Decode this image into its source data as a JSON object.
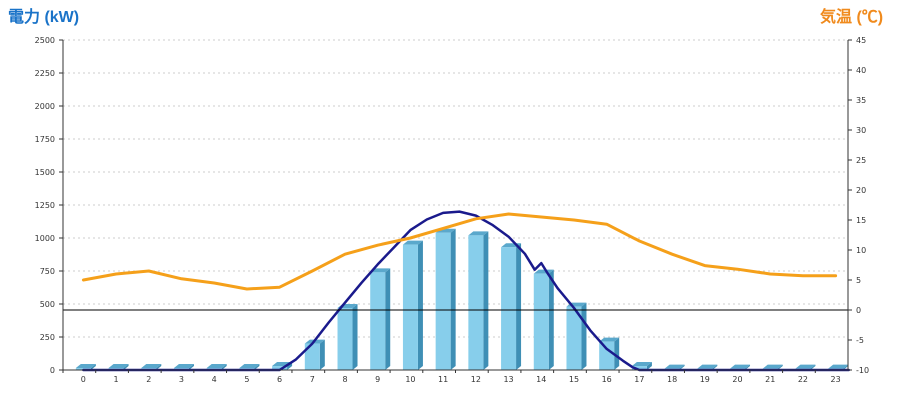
{
  "chart_data": {
    "type": "bar",
    "left_axis_title": "電力 (kW)",
    "right_axis_title": "気温 (℃)",
    "categories": [
      "0",
      "1",
      "2",
      "3",
      "4",
      "5",
      "6",
      "7",
      "8",
      "9",
      "10",
      "11",
      "12",
      "13",
      "14",
      "15",
      "16",
      "17",
      "18",
      "19",
      "20",
      "21",
      "22",
      "23"
    ],
    "y_left": {
      "min": 0,
      "max": 2500,
      "ticks": [
        "0",
        "250",
        "500",
        "750",
        "1000",
        "1250",
        "1500",
        "1750",
        "2000",
        "2250",
        "2500"
      ]
    },
    "y_right": {
      "min": -10,
      "max": 45,
      "ticks": [
        "-10",
        "-5",
        "0",
        "5",
        "10",
        "15",
        "20",
        "25",
        "30",
        "35",
        "40",
        "45"
      ]
    },
    "series": [
      {
        "kind": "bar",
        "axis": "left",
        "color": "#87ceeb",
        "values": [
          15,
          15,
          15,
          15,
          15,
          15,
          30,
          200,
          470,
          740,
          950,
          1040,
          1020,
          930,
          730,
          480,
          215,
          30,
          10,
          10,
          10,
          10,
          10,
          10
        ]
      },
      {
        "kind": "line",
        "axis": "left",
        "color": "#1a1a8c",
        "x": [
          0,
          6,
          6.5,
          7,
          7.5,
          8,
          8.5,
          9,
          9.5,
          10,
          10.5,
          11,
          11.5,
          12,
          12.5,
          13,
          13.5,
          13.8,
          14,
          14.2,
          14.5,
          15,
          15.5,
          16,
          16.5,
          16.8,
          17,
          23.4
        ],
        "values": [
          0,
          0,
          80,
          200,
          360,
          510,
          660,
          800,
          930,
          1060,
          1140,
          1190,
          1200,
          1170,
          1100,
          1010,
          880,
          760,
          810,
          730,
          620,
          470,
          300,
          160,
          70,
          20,
          0,
          0
        ]
      },
      {
        "kind": "line",
        "axis": "right",
        "color": "#f5a01a",
        "values": [
          5,
          6,
          6.5,
          5.2,
          4.5,
          3.5,
          3.8,
          6.5,
          9.3,
          10.8,
          12,
          13.6,
          15.2,
          16,
          15.5,
          15,
          14.3,
          11.5,
          9.3,
          7.4,
          6.8,
          6,
          5.7,
          5.7
        ]
      }
    ]
  }
}
